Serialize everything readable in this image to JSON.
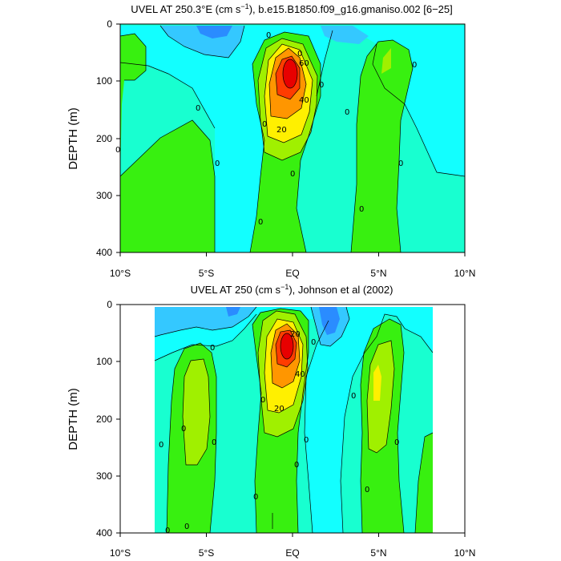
{
  "chart_data": [
    {
      "type": "contour",
      "title": "UVEL AT 250.3°E (cm s",
      "title_superscript": "−1",
      "title_suffix": "), b.e15.B1850.f09_g16.gmaniso.002 [6−25]",
      "ylabel": "DEPTH (m)",
      "xticks": [
        "10°S",
        "5°S",
        "EQ",
        "5°N",
        "10°N"
      ],
      "yticks": [
        "0",
        "100",
        "200",
        "300",
        "400"
      ],
      "xlim": [
        -10,
        10
      ],
      "ylim": [
        400,
        0
      ],
      "grid": false,
      "core": {
        "lat": -0.1,
        "depth": 85,
        "max_cm_s": 100
      },
      "contour_labels": [
        "0",
        "0",
        "0",
        "0",
        "0",
        "0",
        "0",
        "0",
        "0",
        "0",
        "0",
        "0",
        "0",
        "20",
        "40",
        "60"
      ]
    },
    {
      "type": "contour",
      "title": "UVEL AT 250 (cm s",
      "title_superscript": "−1",
      "title_suffix": "), Johnson et al (2002)",
      "ylabel": "DEPTH (m)",
      "xticks": [
        "10°S",
        "5°S",
        "EQ",
        "5°N",
        "10°N"
      ],
      "yticks": [
        "0",
        "100",
        "200",
        "300",
        "400"
      ],
      "xlim": [
        -10,
        10
      ],
      "ylim": [
        400,
        0
      ],
      "grid": false,
      "data_extent_lat": [
        -8,
        8.2
      ],
      "core": {
        "lat": -0.1,
        "depth": 72,
        "max_cm_s": 100
      },
      "contour_labels": [
        "0",
        "0",
        "0",
        "0",
        "0",
        "0",
        "0",
        "0",
        "0",
        "0",
        "0",
        "0",
        "0",
        "0",
        "20",
        "20",
        "40"
      ]
    }
  ],
  "colors": {
    "strong_west": "#2a8cff",
    "west": "#34c8ff",
    "weak_west": "#12ffff",
    "background": "#18ffd0",
    "weak_east": "#20f098",
    "east_green": "#38f010",
    "lime": "#a0f000",
    "yellow": "#fff000",
    "orange_light": "#ffc800",
    "orange": "#ff9600",
    "orange_red": "#ff6e00",
    "red": "#ff3c00",
    "core_red": "#e80000"
  }
}
